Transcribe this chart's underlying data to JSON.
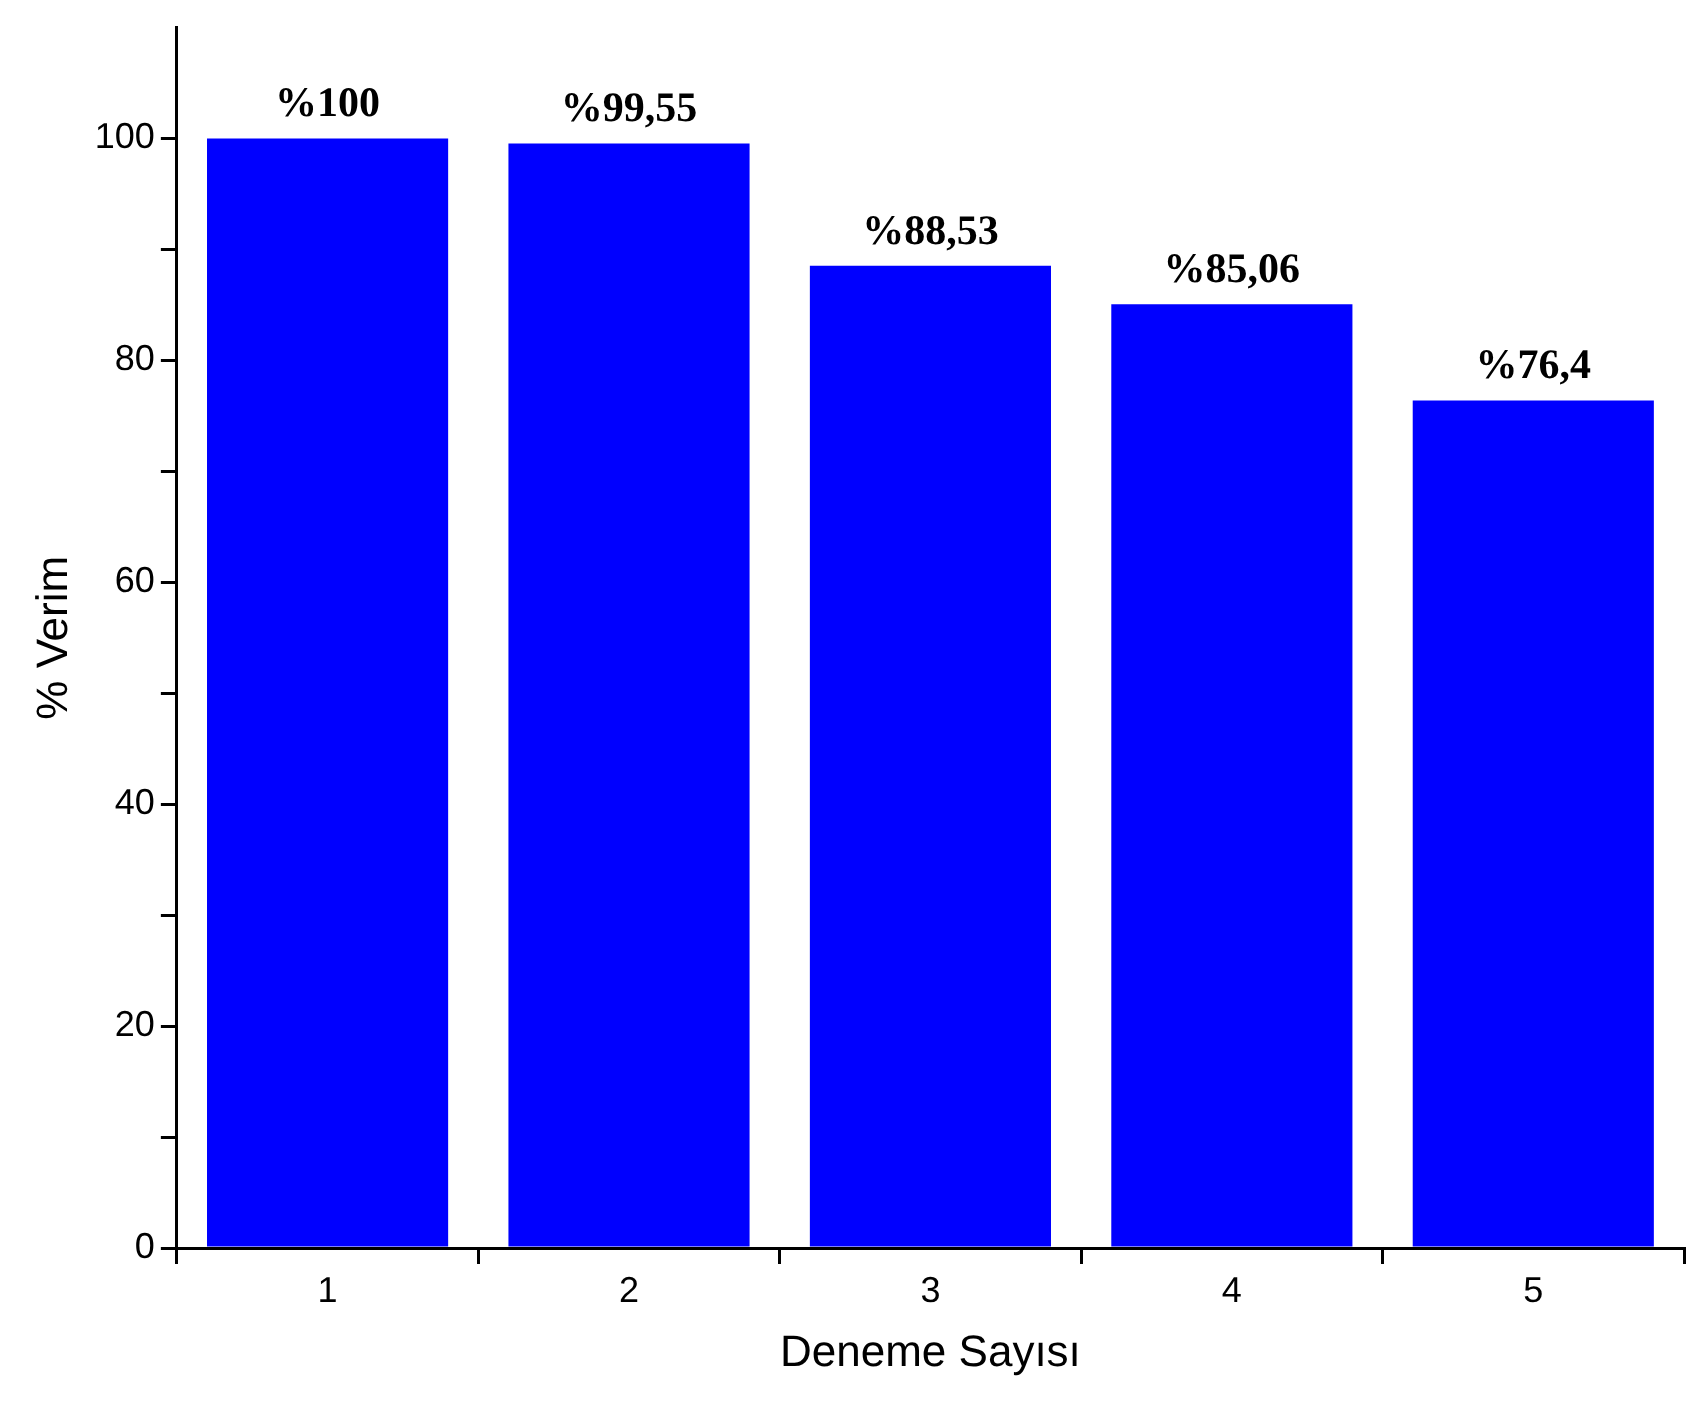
{
  "chart_data": {
    "type": "bar",
    "xlabel": "Deneme Sayısı",
    "ylabel": "% Verim",
    "categories": [
      "1",
      "2",
      "3",
      "4",
      "5"
    ],
    "values": [
      100,
      99.55,
      88.53,
      85.06,
      76.4
    ],
    "value_labels": [
      "%100",
      "%99,55",
      "%88,53",
      "%85,06",
      "%76,4"
    ],
    "color": "#0000ff",
    "ylim": [
      0,
      110
    ],
    "yticks": [
      0,
      {
        "value": 10,
        "label": null
      },
      20,
      {
        "value": 30,
        "label": null
      },
      40,
      {
        "value": 50,
        "label": null
      },
      60,
      {
        "value": 70,
        "label": null
      },
      80,
      {
        "value": 90,
        "label": null
      },
      100
    ],
    "grid": false,
    "legend": false
  }
}
